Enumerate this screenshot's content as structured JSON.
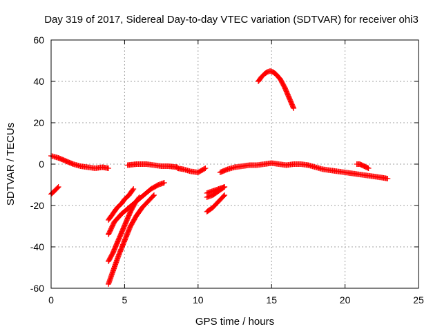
{
  "chart_data": {
    "type": "scatter",
    "title": "Day 319 of 2017, Sidereal Day-to-day VTEC variation (SDTVAR) for receiver ohi3",
    "xlabel": "GPS time / hours",
    "ylabel": "SDTVAR / TECUs",
    "xlim": [
      0,
      25
    ],
    "ylim": [
      -60,
      60
    ],
    "xticks": [
      0,
      5,
      10,
      15,
      20,
      25
    ],
    "xtick_labels": [
      "0",
      "5",
      "10",
      "15",
      "20",
      "25"
    ],
    "yticks": [
      -60,
      -40,
      -20,
      0,
      20,
      40,
      60
    ],
    "ytick_labels": [
      "-60",
      "-40",
      "-20",
      "0",
      "20",
      "40",
      "60"
    ],
    "grid": true,
    "marker": "+",
    "color": "#ff0000",
    "series": [
      {
        "name": "main-track-1",
        "x": [
          0.0,
          0.5,
          1.0,
          1.5,
          2.0,
          2.5,
          3.0,
          3.5,
          3.9
        ],
        "y": [
          4,
          3,
          1.5,
          0,
          -1,
          -1.5,
          -2,
          -1.5,
          -2
        ]
      },
      {
        "name": "main-track-2",
        "x": [
          5.2,
          5.8,
          6.5,
          7.0,
          7.5,
          8.0,
          8.6
        ],
        "y": [
          -0.5,
          0,
          0,
          -0.5,
          -1,
          -1,
          -1.5
        ]
      },
      {
        "name": "main-track-3",
        "x": [
          8.6,
          9.0,
          9.5,
          10.0,
          10.5
        ],
        "y": [
          -2,
          -2.5,
          -3.5,
          -4,
          -2
        ]
      },
      {
        "name": "main-track-4",
        "x": [
          11.5,
          12.0,
          12.5,
          13.0,
          13.5,
          14.0,
          14.5,
          15.0,
          15.5,
          16.0,
          16.5,
          17.0,
          17.5
        ],
        "y": [
          -4,
          -2.5,
          -1.5,
          -1,
          -0.5,
          -0.5,
          0,
          0.5,
          0,
          -0.5,
          0,
          0,
          -0.5
        ]
      },
      {
        "name": "main-track-5",
        "x": [
          17.5,
          18.0,
          18.5,
          19.0,
          19.5,
          20.0,
          20.5,
          21.0,
          21.5,
          22.0,
          22.5,
          22.9
        ],
        "y": [
          -0.5,
          -1.5,
          -2.5,
          -3,
          -3.5,
          -4,
          -4.5,
          -5,
          -5.5,
          -6,
          -6.5,
          -7
        ]
      },
      {
        "name": "high-arc",
        "x": [
          14.1,
          14.3,
          14.5,
          14.7,
          14.9,
          15.1,
          15.3,
          15.6,
          15.9,
          16.2,
          16.5
        ],
        "y": [
          40,
          42,
          43.5,
          44.5,
          45,
          44.5,
          43.5,
          41,
          37,
          32,
          27
        ]
      },
      {
        "name": "short-track-21",
        "x": [
          20.8,
          21.0,
          21.3,
          21.6
        ],
        "y": [
          0,
          0,
          -1,
          -2
        ]
      },
      {
        "name": "start-segment",
        "x": [
          0.0,
          0.3,
          0.5
        ],
        "y": [
          -14.5,
          -12.5,
          -11
        ]
      },
      {
        "name": "low-track-1",
        "x": [
          3.9,
          4.2,
          4.5,
          4.8,
          5.0,
          5.3,
          5.6
        ],
        "y": [
          -27,
          -24,
          -21,
          -19,
          -17,
          -15,
          -12
        ]
      },
      {
        "name": "low-track-2",
        "x": [
          3.9,
          4.3,
          4.8,
          5.3,
          5.8,
          6.3,
          6.8,
          7.3,
          7.7
        ],
        "y": [
          -34,
          -28,
          -24,
          -21,
          -18,
          -15,
          -12,
          -10,
          -9
        ]
      },
      {
        "name": "low-track-3",
        "x": [
          3.9,
          4.2,
          4.5,
          4.8,
          5.1,
          5.4,
          5.7,
          6.0
        ],
        "y": [
          -47,
          -43,
          -38,
          -33,
          -28,
          -23,
          -19,
          -16
        ]
      },
      {
        "name": "low-track-4",
        "x": [
          3.9,
          4.2,
          4.6,
          5.0,
          5.4,
          5.8,
          6.2,
          6.6,
          7.0
        ],
        "y": [
          -58,
          -52,
          -44,
          -37,
          -30,
          -25,
          -21,
          -18,
          -15
        ]
      },
      {
        "name": "low-track-5",
        "x": [
          10.6,
          11.0,
          11.4,
          11.8
        ],
        "y": [
          -14,
          -13,
          -12,
          -11
        ]
      },
      {
        "name": "low-track-6",
        "x": [
          10.6,
          11.0,
          11.4,
          11.8
        ],
        "y": [
          -16,
          -15,
          -13,
          -11
        ]
      },
      {
        "name": "low-track-7",
        "x": [
          10.6,
          11.0,
          11.4,
          11.8
        ],
        "y": [
          -23,
          -21,
          -18,
          -15
        ]
      }
    ]
  }
}
